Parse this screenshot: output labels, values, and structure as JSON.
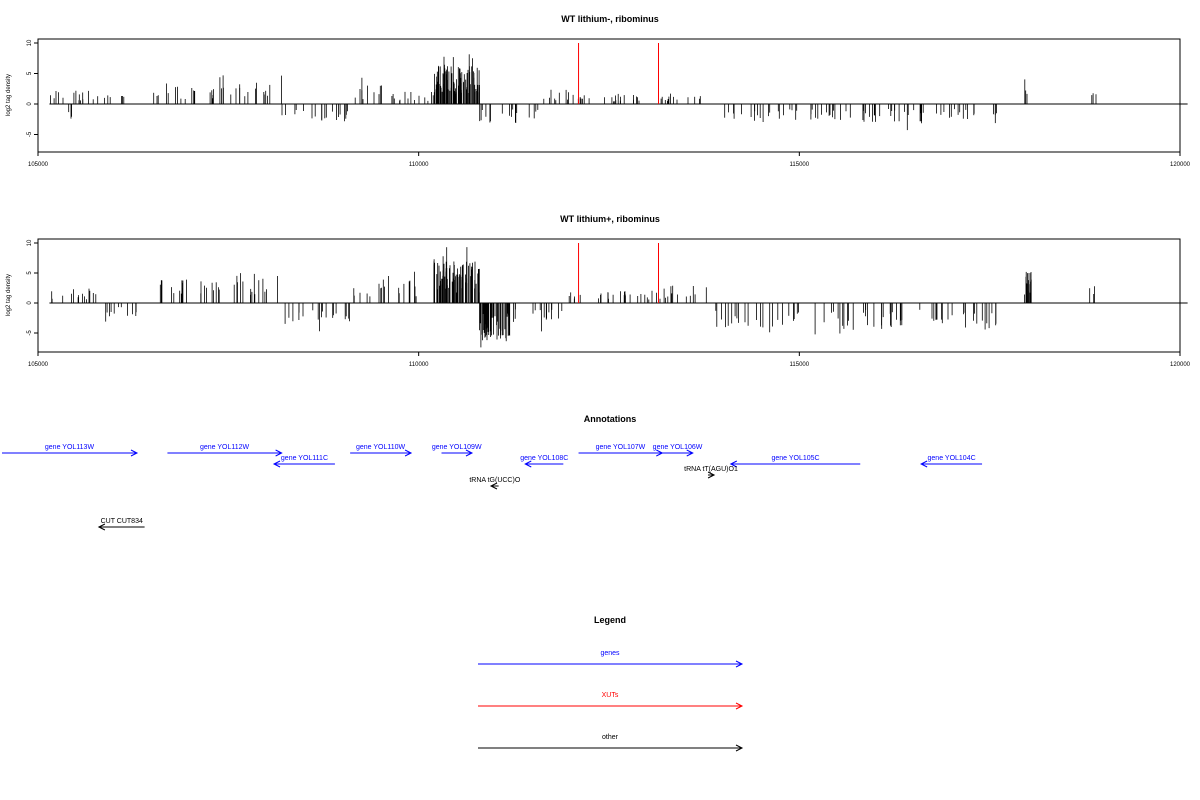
{
  "chart_data": [
    {
      "type": "bar",
      "title": "WT lithium-, ribominus",
      "xlabel": "",
      "ylabel": "log2 tag density",
      "xlim": [
        105000,
        120000
      ],
      "ylim": [
        -7,
        10
      ],
      "xticks": [
        105000,
        110000,
        115000,
        120000
      ],
      "xtick_labels": [
        "105000",
        "110000",
        "115000",
        "120000"
      ],
      "yticks": [
        -5,
        0,
        5,
        10
      ],
      "ytick_labels": [
        "-5",
        "0",
        "5",
        "10"
      ],
      "grid": false,
      "baseline": {
        "x": [
          105150,
          120100
        ],
        "y": 0
      },
      "vlines_red": [
        {
          "x": 112100,
          "y": 10
        },
        {
          "x": 113150,
          "y": 10
        }
      ],
      "regions": [
        {
          "x": [
            105150,
            105400
          ],
          "y": 2.5
        },
        {
          "x": [
            105400,
            105450
          ],
          "y": -2.2
        },
        {
          "x": [
            105450,
            106200
          ],
          "y": 2.2
        },
        {
          "x": [
            106500,
            107300
          ],
          "y": 3.0
        },
        {
          "x": [
            107300,
            108200
          ],
          "y": 3.5
        },
        {
          "x": [
            108200,
            109100
          ],
          "y": -3.2
        },
        {
          "x": [
            109100,
            109700
          ],
          "y": 3.2
        },
        {
          "x": [
            109700,
            110200
          ],
          "y": 2.0
        },
        {
          "x": [
            110200,
            110800
          ],
          "y": 6.5
        },
        {
          "x": [
            110800,
            111600
          ],
          "y": -3.2
        },
        {
          "x": [
            111600,
            112100
          ],
          "y": 2.5
        },
        {
          "x": [
            112100,
            113200
          ],
          "y": 1.5
        },
        {
          "x": [
            113200,
            113700
          ],
          "y": 2.0
        },
        {
          "x": [
            114000,
            115500
          ],
          "y": -3.0
        },
        {
          "x": [
            115500,
            117600
          ],
          "y": -3.2
        },
        {
          "x": [
            117950,
            118050
          ],
          "y": 5.0
        },
        {
          "x": [
            118800,
            118900
          ],
          "y": 4.0
        }
      ]
    },
    {
      "type": "bar",
      "title": "WT lithium+, ribominus",
      "xlabel": "",
      "ylabel": "log2 tag density",
      "xlim": [
        105000,
        120000
      ],
      "ylim": [
        -7,
        10
      ],
      "xticks": [
        105000,
        110000,
        115000,
        120000
      ],
      "xtick_labels": [
        "105000",
        "110000",
        "115000",
        "120000"
      ],
      "yticks": [
        -5,
        0,
        5,
        10
      ],
      "ytick_labels": [
        "-5",
        "0",
        "5",
        "10"
      ],
      "grid": false,
      "baseline": {
        "x": [
          105150,
          120100
        ],
        "y": 0
      },
      "vlines_red": [
        {
          "x": 112100,
          "y": 10
        },
        {
          "x": 113150,
          "y": 10
        }
      ],
      "regions": [
        {
          "x": [
            105150,
            105800
          ],
          "y": 2.5
        },
        {
          "x": [
            105800,
            106300
          ],
          "y": -2.5
        },
        {
          "x": [
            106500,
            107500
          ],
          "y": 4.0
        },
        {
          "x": [
            107500,
            108200
          ],
          "y": 5.0
        },
        {
          "x": [
            108200,
            109100
          ],
          "y": -3.5
        },
        {
          "x": [
            109100,
            110000
          ],
          "y": 4.0
        },
        {
          "x": [
            110200,
            110800
          ],
          "y": 7.0
        },
        {
          "x": [
            110800,
            111200
          ],
          "y": -6.5
        },
        {
          "x": [
            111200,
            111900
          ],
          "y": -3.5
        },
        {
          "x": [
            111900,
            113200
          ],
          "y": 2.0
        },
        {
          "x": [
            113200,
            113800
          ],
          "y": 3.0
        },
        {
          "x": [
            113900,
            115000
          ],
          "y": -4.5
        },
        {
          "x": [
            115200,
            117600
          ],
          "y": -4.5
        },
        {
          "x": [
            117950,
            118050
          ],
          "y": 5.5
        },
        {
          "x": [
            118800,
            118900
          ],
          "y": 4.0
        }
      ]
    },
    {
      "type": "annotation-track",
      "title": "Annotations",
      "xlim": [
        105000,
        120000
      ],
      "features": [
        {
          "label": "gene YOL113W",
          "start": 104500,
          "end": 106300,
          "strand": "+",
          "kind": "gene",
          "row": 0
        },
        {
          "label": "gene YOL112W",
          "start": 106700,
          "end": 108200,
          "strand": "+",
          "kind": "gene",
          "row": 0
        },
        {
          "label": "gene YOL111C",
          "start": 108100,
          "end": 108900,
          "strand": "-",
          "kind": "gene",
          "row": 1
        },
        {
          "label": "gene YOL110W",
          "start": 109100,
          "end": 109900,
          "strand": "+",
          "kind": "gene",
          "row": 0
        },
        {
          "label": "gene YOL109W",
          "start": 110300,
          "end": 110700,
          "strand": "+",
          "kind": "gene",
          "row": 0
        },
        {
          "label": "gene YOL108C",
          "start": 111400,
          "end": 111900,
          "strand": "-",
          "kind": "gene",
          "row": 1
        },
        {
          "label": "gene YOL107W",
          "start": 112100,
          "end": 113200,
          "strand": "+",
          "kind": "gene",
          "row": 0
        },
        {
          "label": "gene YOL106W",
          "start": 113200,
          "end": 113600,
          "strand": "+",
          "kind": "gene",
          "row": 0
        },
        {
          "label": "gene YOL105C",
          "start": 114100,
          "end": 115800,
          "strand": "-",
          "kind": "gene",
          "row": 1
        },
        {
          "label": "gene YOL104C",
          "start": 116600,
          "end": 117400,
          "strand": "-",
          "kind": "gene",
          "row": 1
        },
        {
          "label": "tRNA tT(AGU)O1",
          "start": 113800,
          "end": 113880,
          "strand": "+",
          "kind": "other",
          "row": 2
        },
        {
          "label": "tRNA tG(UCC)O",
          "start": 110950,
          "end": 111050,
          "strand": "-",
          "kind": "other",
          "row": 3
        },
        {
          "label": "CUT CUT834",
          "start": 105800,
          "end": 106400,
          "strand": "-",
          "kind": "other",
          "row": 4
        }
      ]
    },
    {
      "type": "legend",
      "title": "Legend",
      "entries": [
        {
          "label": "genes",
          "color": "#0000ff"
        },
        {
          "label": "XUTs",
          "color": "#ff0000"
        },
        {
          "label": "other",
          "color": "#000000"
        }
      ]
    }
  ],
  "colors": {
    "genes": "#0000ff",
    "xuts": "#ff0000",
    "other": "#000000"
  }
}
